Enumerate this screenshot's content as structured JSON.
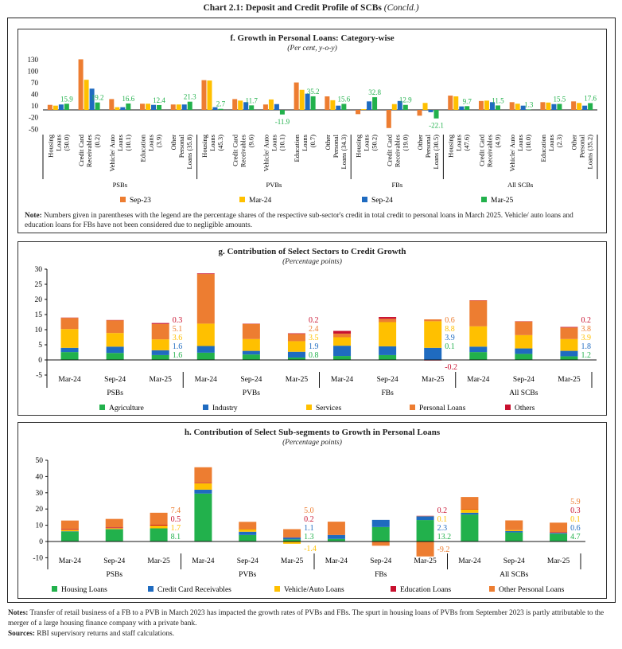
{
  "header": {
    "title": "Chart 2.1: Deposit and Credit Profile of SCBs",
    "title_suffix": "(Concld.)"
  },
  "colors": {
    "sep23": "#ED7D31",
    "mar24": "#FFC000",
    "sep24": "#1F6BC0",
    "mar25": "#22B14C",
    "others": "#C8102E"
  },
  "chart_data": [
    {
      "type": "bar",
      "title": "f. Growth in Personal Loans: Category-wise",
      "subtitle": "(Per cent, y-o-y)",
      "ylim": [
        -50,
        130
      ],
      "yticks": [
        "130",
        "100",
        "70",
        "40",
        "10",
        "-20",
        "-50"
      ],
      "series": [
        "Sep-23",
        "Mar-24",
        "Sep-24",
        "Mar-25"
      ],
      "series_colors": [
        "#ED7D31",
        "#FFC000",
        "#1F6BC0",
        "#22B14C"
      ],
      "data_label_series": "Mar-25",
      "groups": [
        {
          "name": "PSBs",
          "categories": [
            {
              "label": [
                "Housing",
                "Loans",
                "(50.0)"
              ],
              "values": [
                13,
                11,
                14,
                15.9
              ]
            },
            {
              "label": [
                "Credit Card",
                "Receivables",
                "(0.2)"
              ],
              "values": [
                131,
                78,
                55,
                19.2
              ]
            },
            {
              "label": [
                "Vehicle/ Auto",
                "Loans",
                "(10.1)"
              ],
              "values": [
                28,
                7,
                7,
                16.6
              ]
            },
            {
              "label": [
                "Education",
                "Loans",
                "(3.9)"
              ],
              "values": [
                16,
                16,
                13,
                12.4
              ]
            },
            {
              "label": [
                "Other",
                "Personal",
                "Loans (35.8)"
              ],
              "values": [
                14,
                14,
                14,
                21.3
              ]
            }
          ]
        },
        {
          "name": "PVBs",
          "categories": [
            {
              "label": [
                "Housing",
                "Loans",
                "(45.3)"
              ],
              "values": [
                77,
                76,
                7,
                2.7
              ]
            },
            {
              "label": [
                "Credit Card",
                "Receivables",
                "(9.6)"
              ],
              "values": [
                28,
                24,
                20,
                11.7
              ]
            },
            {
              "label": [
                "Vehicle/ Auto",
                "Loans",
                "(10.1)"
              ],
              "values": [
                14,
                27,
                15,
                -11.9
              ]
            },
            {
              "label": [
                "Education",
                "Loans",
                "(0.7)"
              ],
              "values": [
                71,
                52,
                42,
                35.2
              ]
            },
            {
              "label": [
                "Other",
                "Personal",
                "Loans (34.3)"
              ],
              "values": [
                35,
                25,
                11,
                15.6
              ]
            }
          ]
        },
        {
          "name": "FBs",
          "categories": [
            {
              "label": [
                "Housing",
                "Loans",
                "(50.2)"
              ],
              "values": [
                -11,
                2,
                22,
                32.8
              ]
            },
            {
              "label": [
                "Credit Card",
                "Receivables",
                "(19.0)"
              ],
              "values": [
                -47,
                15,
                23,
                12.9
              ]
            },
            {
              "label": [
                "Other",
                "Personal",
                "Loans (30.5)"
              ],
              "values": [
                -15,
                18,
                -6,
                -22.1
              ]
            }
          ]
        },
        {
          "name": "All SCBs",
          "categories": [
            {
              "label": [
                "Housing",
                "Loans",
                "(47.6)"
              ],
              "values": [
                37,
                35,
                9,
                9.7
              ]
            },
            {
              "label": [
                "Credit Card",
                "Receivables",
                "(4.9)"
              ],
              "values": [
                23,
                24,
                20,
                11.5
              ]
            },
            {
              "label": [
                "Vehicle/ Auto",
                "Loans",
                "(10.0)"
              ],
              "values": [
                20,
                16,
                11,
                1.3
              ]
            },
            {
              "label": [
                "Education",
                "Loans",
                "(2.3)"
              ],
              "values": [
                20,
                19,
                15,
                15.5
              ]
            },
            {
              "label": [
                "Other",
                "Personal",
                "Loans (35.2)"
              ],
              "values": [
                22,
                18,
                11,
                17.6
              ]
            }
          ]
        }
      ],
      "note_label": "Note:",
      "note": "Numbers given in parentheses with the legend are the percentage shares of the respective sub-sector's credit in total credit to personal loans in March 2025. Vehicle/ auto loans and education loans for FBs have not been considered due to negligible amounts."
    },
    {
      "type": "bar",
      "stacked": true,
      "title": "g. Contribution of Select Sectors to Credit Growth",
      "subtitle": "(Percentage points)",
      "ylim": [
        -5,
        30
      ],
      "yticks": [
        "30",
        "25",
        "20",
        "15",
        "10",
        "5",
        "0",
        "-5"
      ],
      "groups": [
        "PSBs",
        "PVBs",
        "FBs",
        "All SCBs"
      ],
      "categories": [
        "Mar-24",
        "Sep-24",
        "Mar-25",
        "Mar-24",
        "Sep-24",
        "Mar-25",
        "Mar-24",
        "Sep-24",
        "Mar-25",
        "Mar-24",
        "Sep-24",
        "Mar-25"
      ],
      "series": [
        {
          "name": "Agriculture",
          "color": "#22B14C",
          "values": [
            2.6,
            2.3,
            1.6,
            2.4,
            1.8,
            0.8,
            1.3,
            1.6,
            0.1,
            2.6,
            2.0,
            1.2
          ]
        },
        {
          "name": "Industry",
          "color": "#1F6BC0",
          "values": [
            1.4,
            2.1,
            1.6,
            2.2,
            1.2,
            1.9,
            3.4,
            2.9,
            3.9,
            1.8,
            1.8,
            1.8
          ]
        },
        {
          "name": "Services",
          "color": "#FFC000",
          "values": [
            6.2,
            4.5,
            3.6,
            7.4,
            3.9,
            3.5,
            2.8,
            8.0,
            8.8,
            6.7,
            4.4,
            3.9
          ]
        },
        {
          "name": "Personal Loans",
          "color": "#ED7D31",
          "values": [
            3.7,
            4.2,
            5.1,
            16.4,
            5.0,
            2.4,
            1.2,
            1.1,
            0.6,
            8.5,
            4.5,
            3.8
          ]
        },
        {
          "name": "Others",
          "color": "#C8102E",
          "values": [
            0.1,
            0.1,
            0.3,
            0.2,
            0.1,
            0.2,
            0.9,
            0.6,
            -0.2,
            0.1,
            0.1,
            0.2
          ]
        }
      ]
    },
    {
      "type": "bar",
      "stacked": true,
      "title": "h. Contribution of Select Sub-segments to Growth in Personal Loans",
      "subtitle": "(Percentage points)",
      "ylim": [
        -10,
        50
      ],
      "yticks": [
        "50",
        "40",
        "30",
        "20",
        "10",
        "0",
        "-10"
      ],
      "groups": [
        "PSBs",
        "PVBs",
        "FBs",
        "All SCBs"
      ],
      "categories": [
        "Mar-24",
        "Sep-24",
        "Mar-25",
        "Mar-24",
        "Sep-24",
        "Mar-25",
        "Mar-24",
        "Sep-24",
        "Mar-25",
        "Mar-24",
        "Sep-24",
        "Mar-25"
      ],
      "series": [
        {
          "name": "Housing Loans",
          "color": "#22B14C",
          "values": [
            6.1,
            7.5,
            8.1,
            29.5,
            4.0,
            1.3,
            1.6,
            8.9,
            13.2,
            16.6,
            5.6,
            4.7
          ]
        },
        {
          "name": "Credit Card Receivables",
          "color": "#1F6BC0",
          "values": [
            0.2,
            0.1,
            null,
            2.4,
            2.0,
            1.1,
            2.4,
            4.4,
            2.3,
            1.1,
            0.8,
            0.6
          ]
        },
        {
          "name": "Vehicle/Auto Loans",
          "color": "#FFC000",
          "values": [
            0.9,
            0.6,
            1.7,
            3.9,
            1.6,
            -1.4,
            0,
            0,
            0.1,
            2.1,
            0.8,
            0.1
          ]
        },
        {
          "name": "Education Loans",
          "color": "#C8102E",
          "values": [
            0.5,
            0.5,
            0.5,
            0.3,
            0.2,
            0.2,
            0,
            0,
            0.2,
            0.3,
            0.2,
            0.3
          ]
        },
        {
          "name": "Other Personal Loans",
          "color": "#ED7D31",
          "values": [
            5.2,
            5.2,
            7.4,
            9.6,
            4.3,
            5.0,
            8.2,
            -2.6,
            -9.2,
            7.3,
            5.6,
            5.9
          ]
        }
      ]
    }
  ],
  "footer": {
    "notes_label": "Notes:",
    "notes": "Transfer of retail business of a FB to a PVB in March 2023 has impacted the growth rates of PVBs and FBs. The spurt in housing loans of PVBs from September 2023 is partly attributable to the merger of a large housing finance company with a private bank.",
    "sources_label": "Sources:",
    "sources": "RBI supervisory returns and staff calculations."
  }
}
